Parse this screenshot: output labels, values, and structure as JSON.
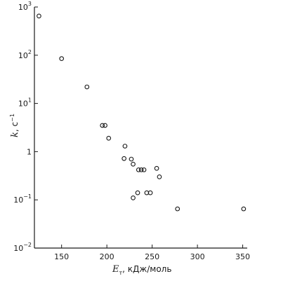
{
  "chart_data": {
    "type": "scatter",
    "title": "",
    "xlabel": {
      "symbol": "E",
      "subscript": "т",
      "suffix": ", кДж/моль"
    },
    "ylabel": {
      "symbol": "k",
      "suffix": ", с",
      "exponent": "−1"
    },
    "x_scale": "linear",
    "y_scale": "log",
    "xlim": [
      120,
      355
    ],
    "ylim": [
      0.01,
      1000
    ],
    "grid": false,
    "x_ticks": [
      {
        "value": 150,
        "label": "150"
      },
      {
        "value": 200,
        "label": "200"
      },
      {
        "value": 250,
        "label": "250"
      },
      {
        "value": 300,
        "label": "300"
      },
      {
        "value": 350,
        "label": "350"
      }
    ],
    "y_ticks": [
      {
        "value": 0.01,
        "base": "10",
        "exp": "−2"
      },
      {
        "value": 0.1,
        "base": "10",
        "exp": "−1"
      },
      {
        "value": 1,
        "base": "1",
        "exp": ""
      },
      {
        "value": 10,
        "base": "10",
        "exp": "1"
      },
      {
        "value": 100,
        "base": "10",
        "exp": "2"
      },
      {
        "value": 1000,
        "base": "10",
        "exp": "3"
      }
    ],
    "points": [
      {
        "x": 125,
        "y": 650
      },
      {
        "x": 150,
        "y": 85
      },
      {
        "x": 178,
        "y": 22
      },
      {
        "x": 195,
        "y": 3.5
      },
      {
        "x": 198,
        "y": 3.5
      },
      {
        "x": 202,
        "y": 1.9
      },
      {
        "x": 220,
        "y": 1.3
      },
      {
        "x": 219,
        "y": 0.72
      },
      {
        "x": 227,
        "y": 0.7
      },
      {
        "x": 229,
        "y": 0.55
      },
      {
        "x": 235,
        "y": 0.42
      },
      {
        "x": 238,
        "y": 0.42
      },
      {
        "x": 241,
        "y": 0.42
      },
      {
        "x": 255,
        "y": 0.45
      },
      {
        "x": 258,
        "y": 0.3
      },
      {
        "x": 234,
        "y": 0.14
      },
      {
        "x": 244,
        "y": 0.14
      },
      {
        "x": 248,
        "y": 0.14
      },
      {
        "x": 229,
        "y": 0.11
      },
      {
        "x": 278,
        "y": 0.065
      },
      {
        "x": 351,
        "y": 0.065
      }
    ]
  }
}
